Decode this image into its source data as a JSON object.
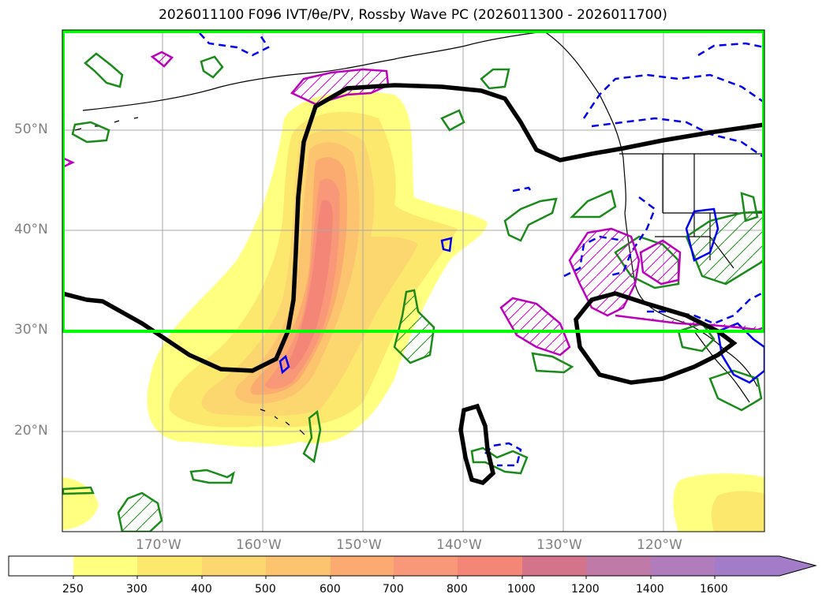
{
  "title": "2026011100 F096 IVT/θe/PV, Rossby Wave PC (2026011300 - 2026011700)",
  "map": {
    "lat_labels": [
      "50°N",
      "40°N",
      "30°N",
      "20°N"
    ],
    "lon_labels": [
      "170°W",
      "160°W",
      "150°W",
      "140°W",
      "130°W",
      "120°W"
    ],
    "highlight_box_color": "#00ff00",
    "pc_contour_color": "#000000",
    "green_contour_color": "#1a8a1a",
    "blue_contour_color": "#0000ee",
    "magenta_contour_color": "#bb00bb"
  },
  "colorbar": {
    "levels": [
      "250",
      "300",
      "400",
      "500",
      "600",
      "700",
      "800",
      "1000",
      "1200",
      "1400",
      "1600"
    ],
    "colors": [
      "#ffffff",
      "#ffff80",
      "#fde86e",
      "#fcd66e",
      "#fcc46e",
      "#fbab70",
      "#f99878",
      "#f48678",
      "#d4748a",
      "#bf7aa8",
      "#b07cbc",
      "#a27cc8"
    ]
  }
}
